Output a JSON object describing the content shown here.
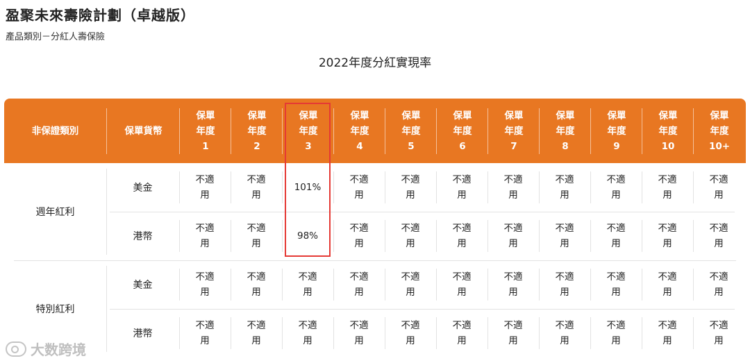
{
  "page": {
    "title": "盈聚未來壽險計劃（卓越版）",
    "subtitle": "產品類別－分紅人壽保險",
    "table_title": "2022年度分紅實現率"
  },
  "table": {
    "header_color": "#e87722",
    "highlight_color": "#e53935",
    "col_type_label": "非保證類別",
    "col_currency_label": "保單貨幣",
    "year_headers": [
      "保單\n年度\n1",
      "保單\n年度\n2",
      "保單\n年度\n3",
      "保單\n年度\n4",
      "保單\n年度\n5",
      "保單\n年度\n6",
      "保單\n年度\n7",
      "保單\n年度\n8",
      "保單\n年度\n9",
      "保單\n年度\n10",
      "保單\n年度\n10+"
    ],
    "groups": [
      {
        "label": "週年紅利",
        "rows": [
          {
            "currency": "美金",
            "values": [
              "不適\n用",
              "不適\n用",
              "101%",
              "不適\n用",
              "不適\n用",
              "不適\n用",
              "不適\n用",
              "不適\n用",
              "不適\n用",
              "不適\n用",
              "不適\n用"
            ]
          },
          {
            "currency": "港幣",
            "values": [
              "不適\n用",
              "不適\n用",
              "98%",
              "不適\n用",
              "不適\n用",
              "不適\n用",
              "不適\n用",
              "不適\n用",
              "不適\n用",
              "不適\n用",
              "不適\n用"
            ]
          }
        ]
      },
      {
        "label": "特別紅利",
        "rows": [
          {
            "currency": "美金",
            "values": [
              "不適\n用",
              "不適\n用",
              "不適\n用",
              "不適\n用",
              "不適\n用",
              "不適\n用",
              "不適\n用",
              "不適\n用",
              "不適\n用",
              "不適\n用",
              "不適\n用"
            ]
          },
          {
            "currency": "港幣",
            "values": [
              "不適\n用",
              "不適\n用",
              "不適\n用",
              "不適\n用",
              "不適\n用",
              "不適\n用",
              "不適\n用",
              "不適\n用",
              "不適\n用",
              "不適\n用",
              "不適\n用"
            ]
          }
        ]
      }
    ]
  },
  "watermark": {
    "text": "大数跨境",
    "icon": "cloud-logo-icon"
  }
}
